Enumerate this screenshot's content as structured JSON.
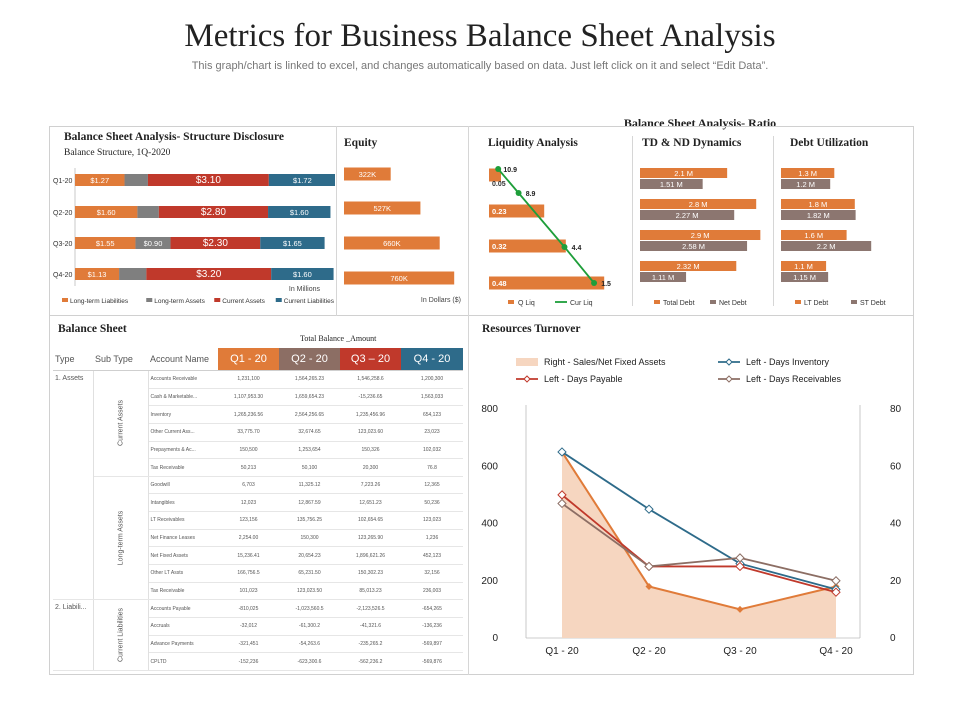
{
  "header": {
    "title": "Metrics for Business Balance Sheet Analysis",
    "subtitle": "This graph/chart is linked to excel, and changes automatically based on data. Just left click on it and select “Edit Data”.",
    "ratio_title": "Balance Sheet Analysis- Ratio"
  },
  "colors": {
    "long_term_liabilities": "#E07B39",
    "long_term_assets": "#7F7F7F",
    "current_assets": "#C0392B",
    "current_liabilities": "#2E6B8A",
    "orange": "#E07B39",
    "green": "#1E9E3A",
    "gray": "#8C7670",
    "q1": "#E07B39",
    "q2": "#8C6E64",
    "q3": "#C0392B",
    "q4": "#2E6B8A"
  },
  "structure": {
    "title": "Balance Sheet Analysis- Structure Disclosure",
    "subtitle": "Balance Structure, 1Q-2020",
    "unit": "In Millions"
  },
  "equity": {
    "title": "Equity",
    "unit": "In Dollars ($)"
  },
  "liquidity": {
    "title": "Liquidity Analysis"
  },
  "td_nd": {
    "title": "TD & ND Dynamics"
  },
  "debt_util": {
    "title": "Debt Utilization"
  },
  "balance_sheet": {
    "title": "Balance Sheet",
    "table_title": "Total Balance _Amount",
    "headers": [
      "Type",
      "Sub Type",
      "Account Name",
      "Q1 - 20",
      "Q2 - 20",
      "Q3 – 20",
      "Q4 - 20"
    ],
    "groups": [
      {
        "type": "1. Assets",
        "subgroups": [
          {
            "name": "Current Assets",
            "rows": [
              [
                "Accounts Receivable",
                "1,231,100",
                "1,564,265.23",
                "1,546,258.6",
                "1,200,300"
              ],
              [
                "Cash & Marketable...",
                "1,107,953.30",
                "1,659,654.23",
                "-15,236.65",
                "1,563,033"
              ],
              [
                "Inventory",
                "1,265,236.56",
                "2,564,256.65",
                "1,235,456.96",
                "654,123"
              ],
              [
                "Other Current Ass...",
                "33,775.70",
                "32,674.65",
                "123,023.60",
                "23,023"
              ],
              [
                "Prepayments & Ac...",
                "150,500",
                "1,253,654",
                "150,326",
                "102,032"
              ],
              [
                "Tax Receivable",
                "50,213",
                "50,100",
                "20,300",
                "76.8"
              ]
            ]
          },
          {
            "name": "Long-term Assets",
            "rows": [
              [
                "Goodwill",
                "6,703",
                "11,325.12",
                "7,223.26",
                "12,365"
              ],
              [
                "Intangibles",
                "12,023",
                "12,867.59",
                "12,651.23",
                "50,236"
              ],
              [
                "LT Receivables",
                "123,156",
                "135,756.25",
                "102,654.65",
                "123,023"
              ],
              [
                "Net Finance Leases",
                "2,254.00",
                "150,300",
                "123,265.90",
                "1,236"
              ],
              [
                "Net Fixed Assets",
                "15,236.41",
                "20,654.23",
                "1,896,621.26",
                "452,123"
              ],
              [
                "Other LT Assts",
                "166,756.5",
                "65,231.50",
                "150,302.23",
                "32,156"
              ],
              [
                "Tax Receivable",
                "101,023",
                "123,023.50",
                "85,013.23",
                "236,003"
              ]
            ]
          }
        ]
      },
      {
        "type": "2. Liabili...",
        "subgroups": [
          {
            "name": "Current Liabilities",
            "rows": [
              [
                "Accounts Payable",
                "-810,025",
                "-1,023,560.5",
                "-2,123,526.5",
                "-654,265"
              ],
              [
                "Accruals",
                "-32,012",
                "-61,300.2",
                "-41,321.6",
                "-136,236"
              ],
              [
                "Advance Payments",
                "-321,451",
                "-54,263.6",
                "-235,265.2",
                "-569,897"
              ],
              [
                "CPLTD",
                "-152,236",
                "-623,300.6",
                "-562,236.2",
                "-569,876"
              ]
            ]
          }
        ]
      }
    ]
  },
  "chart_data": [
    {
      "id": "structure",
      "type": "bar",
      "orientation": "horizontal",
      "stacked": true,
      "categories": [
        "Q1-20",
        "Q2-20",
        "Q3-20",
        "Q4-20"
      ],
      "series": [
        {
          "name": "Long-term Liabilities",
          "values": [
            1.27,
            1.6,
            1.55,
            1.13
          ],
          "labels": [
            "$1.27",
            "$1.60",
            "$1.55",
            "$1.13"
          ]
        },
        {
          "name": "Long-term Assets",
          "values": [
            0.6,
            0.55,
            0.9,
            0.7
          ],
          "labels": [
            "",
            "",
            "$0.90",
            ""
          ]
        },
        {
          "name": "Current Assets",
          "values": [
            3.1,
            2.8,
            2.3,
            3.2
          ],
          "labels": [
            "$3.10",
            "$2.80",
            "$2.30",
            "$3.20"
          ]
        },
        {
          "name": "Current Liabilities",
          "values": [
            1.72,
            1.6,
            1.65,
            1.6
          ],
          "labels": [
            "$1.72",
            "$1.60",
            "$1.65",
            "$1.60"
          ]
        }
      ],
      "legend": "bottom"
    },
    {
      "id": "equity",
      "type": "bar",
      "orientation": "horizontal",
      "values": [
        322,
        527,
        660,
        760
      ],
      "labels": [
        "322K",
        "527K",
        "660K",
        "760K"
      ]
    },
    {
      "id": "liquidity",
      "type": "bar",
      "orientation": "horizontal",
      "series": [
        {
          "name": "Q Liq",
          "type": "bar",
          "values": [
            0.05,
            0.23,
            0.32,
            0.48
          ],
          "labels": [
            "0.05",
            "0.23",
            "0.32",
            "0.48"
          ]
        },
        {
          "name": "Cur Liq",
          "type": "line",
          "values": [
            10.9,
            8.9,
            4.4,
            1.5
          ],
          "labels": [
            "10.9",
            "8.9",
            "4.4",
            "1.5"
          ]
        }
      ],
      "legend": "bottom"
    },
    {
      "id": "td_nd",
      "type": "bar",
      "orientation": "horizontal",
      "series": [
        {
          "name": "Total Debt",
          "values": [
            2.1,
            2.8,
            2.9,
            2.32
          ],
          "labels": [
            "2.1 M",
            "2.8 M",
            "2.9 M",
            "2.32 M"
          ]
        },
        {
          "name": "Net Debt",
          "values": [
            1.51,
            2.27,
            2.58,
            1.11
          ],
          "labels": [
            "1.51 M",
            "2.27 M",
            "2.58 M",
            "1.11 M"
          ]
        }
      ],
      "legend": "bottom"
    },
    {
      "id": "debt_util",
      "type": "bar",
      "orientation": "horizontal",
      "series": [
        {
          "name": "LT Debt",
          "values": [
            1.3,
            1.8,
            1.6,
            1.1
          ],
          "labels": [
            "1.3 M",
            "1.8 M",
            "1.6 M",
            "1.1 M"
          ]
        },
        {
          "name": "ST Debt",
          "values": [
            1.2,
            1.82,
            2.2,
            1.15
          ],
          "labels": [
            "1.2 M",
            "1.82 M",
            "2.2 M",
            "1.15 M"
          ]
        }
      ],
      "legend": "bottom"
    },
    {
      "id": "resources",
      "type": "line",
      "title": "Resources Turnover",
      "categories": [
        "Q1 - 20",
        "Q2 - 20",
        "Q3 - 20",
        "Q4 - 20"
      ],
      "y_left": {
        "ticks": [
          "0",
          "200",
          "400",
          "600",
          "800"
        ],
        "range": [
          0,
          800
        ]
      },
      "y_right": {
        "ticks": [
          "0",
          "20",
          "40",
          "60",
          "80"
        ],
        "range": [
          0,
          80
        ]
      },
      "series": [
        {
          "name": "Right - Sales/Net Fixed Assets",
          "type": "area",
          "axis": "right",
          "values": [
            65,
            18,
            10,
            18
          ]
        },
        {
          "name": "Left - Days Inventory",
          "type": "line",
          "axis": "left",
          "values": [
            650,
            450,
            260,
            170
          ]
        },
        {
          "name": "Left - Days Payable",
          "type": "line",
          "axis": "left",
          "values": [
            500,
            250,
            250,
            160
          ]
        },
        {
          "name": "Left - Days Receivables",
          "type": "line",
          "axis": "left",
          "values": [
            470,
            250,
            280,
            200
          ]
        }
      ],
      "legend": "top"
    }
  ]
}
